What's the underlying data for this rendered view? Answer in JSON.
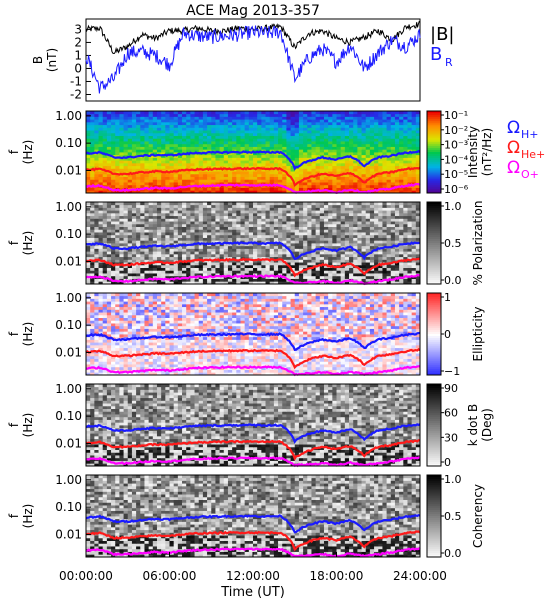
{
  "title": "ACE Mag 2013-357",
  "x_axis": {
    "ticks": [
      "00:00:00",
      "06:00:00",
      "12:00:00",
      "18:00:00",
      "24:00:00"
    ],
    "label": "Time (UT)"
  },
  "colors": {
    "B_total": "#000000",
    "B_R": "#1a1aff",
    "H_plus": "#1a1aff",
    "He_plus": "#ff1a1a",
    "O_plus": "#ff00ff"
  },
  "legend": {
    "b_total": "|B|",
    "b_r_main": "B",
    "b_r_sub": "R",
    "omega": "Ω",
    "h_sub": "H+",
    "he_sub": "He+",
    "o_sub": "O+"
  },
  "freq_ylabel_main": "f",
  "freq_ylabel_sub": "(Hz)",
  "chart_data": [
    {
      "type": "line",
      "panel": "B field",
      "ylabel_main": "B",
      "ylabel_sub": "(nT)",
      "ylim": [
        -2.5,
        3.8
      ],
      "yticks": [
        "3",
        "2",
        "1",
        "0",
        "-1",
        "-2"
      ],
      "x_hours": [
        0,
        1,
        2,
        3,
        4,
        5,
        6,
        7,
        8,
        9,
        10,
        11,
        12,
        13,
        14,
        15,
        16,
        17,
        18,
        19,
        20,
        21,
        22,
        23,
        24
      ],
      "series": [
        {
          "name": "|B|",
          "values": [
            3.0,
            3.1,
            1.2,
            1.7,
            2.6,
            2.3,
            2.9,
            2.9,
            3.1,
            2.9,
            2.9,
            3.1,
            3.0,
            3.1,
            3.2,
            1.6,
            2.7,
            2.9,
            2.3,
            2.0,
            2.4,
            2.9,
            2.2,
            3.2,
            3.4
          ]
        },
        {
          "name": "BR",
          "values": [
            1.0,
            -1.5,
            -0.8,
            1.2,
            1.3,
            1.0,
            0.3,
            2.7,
            2.5,
            2.4,
            2.5,
            2.6,
            2.8,
            2.7,
            2.8,
            -0.8,
            0.8,
            1.5,
            0.5,
            1.8,
            0.0,
            1.2,
            2.2,
            1.7,
            2.6
          ]
        }
      ]
    },
    {
      "type": "heatmap",
      "panel": "Intensity spectrogram",
      "ylim": [
        0.0015,
        1.5
      ],
      "yticks": [
        "1.00",
        "0.10",
        "0.01"
      ],
      "colorbar": {
        "label": "Intensity",
        "units": "(nT²/Hz)",
        "ticks": [
          "10⁻¹",
          "10⁻²",
          "10⁻³",
          "10⁻⁴",
          "10⁻⁵",
          "10⁻⁶"
        ],
        "scale": "rainbow"
      }
    },
    {
      "type": "heatmap",
      "panel": "% Polarization",
      "ylim": [
        0.0015,
        1.5
      ],
      "yticks": [
        "1.00",
        "0.10",
        "0.01"
      ],
      "colorbar": {
        "label": "% Polarization",
        "units": "",
        "ticks": [
          "1.0",
          "0.5",
          "0.0"
        ],
        "scale": "gray"
      }
    },
    {
      "type": "heatmap",
      "panel": "Ellipticity",
      "ylim": [
        0.0015,
        1.5
      ],
      "yticks": [
        "1.00",
        "0.10",
        "0.01"
      ],
      "colorbar": {
        "label": "Ellipticity",
        "units": "",
        "ticks": [
          "1",
          "0",
          "−1"
        ],
        "scale": "bwr"
      }
    },
    {
      "type": "heatmap",
      "panel": "k dot B",
      "ylim": [
        0.0015,
        1.5
      ],
      "yticks": [
        "1.00",
        "0.10",
        "0.01"
      ],
      "colorbar": {
        "label": "k dot B",
        "units": "(Deg)",
        "ticks": [
          "90",
          "60",
          "30",
          "0"
        ],
        "scale": "gray"
      }
    },
    {
      "type": "heatmap",
      "panel": "Coherency",
      "ylim": [
        0.0015,
        1.5
      ],
      "yticks": [
        "1.00",
        "0.10",
        "0.01"
      ],
      "colorbar": {
        "label": "Coherency",
        "units": "",
        "ticks": [
          "1.0",
          "0.5",
          "0.0"
        ],
        "scale": "gray"
      }
    }
  ],
  "gyrofrequencies": {
    "x_hours": [
      0,
      1,
      2,
      3,
      4,
      5,
      6,
      7,
      8,
      9,
      10,
      11,
      12,
      13,
      14,
      15,
      16,
      17,
      18,
      19,
      20,
      21,
      22,
      23,
      24
    ],
    "H_plus_hz": [
      0.042,
      0.045,
      0.03,
      0.03,
      0.034,
      0.037,
      0.036,
      0.04,
      0.044,
      0.045,
      0.046,
      0.047,
      0.047,
      0.046,
      0.047,
      0.012,
      0.022,
      0.03,
      0.025,
      0.033,
      0.014,
      0.03,
      0.035,
      0.045,
      0.05
    ],
    "He_plus_hz": [
      0.0105,
      0.0112,
      0.0075,
      0.0075,
      0.0085,
      0.0092,
      0.009,
      0.01,
      0.011,
      0.0112,
      0.0115,
      0.0117,
      0.0117,
      0.0115,
      0.0117,
      0.003,
      0.0055,
      0.0075,
      0.0062,
      0.0082,
      0.0035,
      0.0075,
      0.0088,
      0.0112,
      0.0125
    ],
    "O_plus_hz": [
      0.0026,
      0.0028,
      0.0019,
      0.0019,
      0.0021,
      0.0023,
      0.0022,
      0.0025,
      0.0027,
      0.0028,
      0.0029,
      0.0029,
      0.0029,
      0.0029,
      0.0029,
      0.0016,
      0.0017,
      0.0019,
      0.0016,
      0.002,
      0.0016,
      0.0019,
      0.0022,
      0.0028,
      0.0031
    ]
  }
}
